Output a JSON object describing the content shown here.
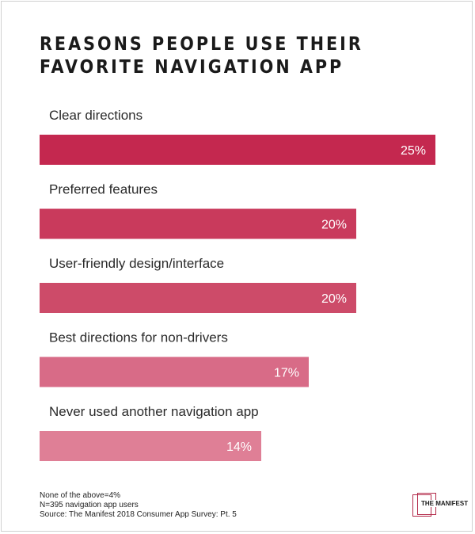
{
  "title_lines": [
    "REASONS PEOPLE USE THEIR",
    "FAVORITE NAVIGATION APP"
  ],
  "chart_data": {
    "type": "bar",
    "orientation": "horizontal",
    "title": "REASONS PEOPLE USE THEIR FAVORITE NAVIGATION APP",
    "categories": [
      "Clear directions",
      "Preferred features",
      "User-friendly design/interface",
      "Best directions for non-drivers",
      "Never used another navigation app"
    ],
    "values": [
      25,
      20,
      20,
      17,
      14
    ],
    "value_labels": [
      "25%",
      "20%",
      "20%",
      "17%",
      "14%"
    ],
    "colors": [
      "#c4284f",
      "#c93a5c",
      "#cd4b69",
      "#d86b87",
      "#df7f96"
    ],
    "xlim": [
      0,
      25
    ],
    "grid": false,
    "legend": "none"
  },
  "notes": [
    "None of the above=4%",
    "N=395 navigation app users",
    "Source: The Manifest 2018 Consumer App Survey: Pt. 5"
  ],
  "logo_text": "THE MANIFEST"
}
